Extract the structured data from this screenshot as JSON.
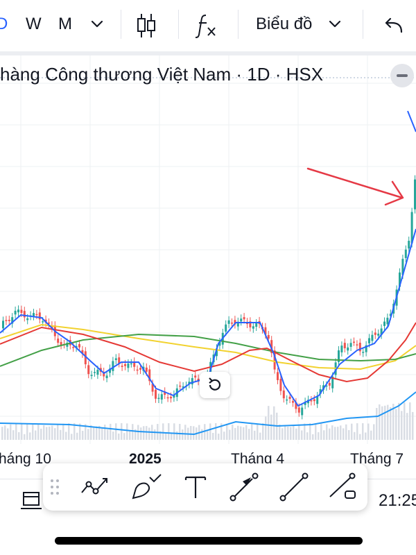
{
  "toolbar": {
    "intervals": [
      "D",
      "W",
      "M"
    ],
    "active_interval": "D",
    "interval_menu_icon": "chevron-down-icon",
    "chart_type_icon": "candlestick-icon",
    "indicators_icon": "fx-icon",
    "chart_menu_label": "Biểu đồ",
    "undo_icon": "undo-icon"
  },
  "symbol_title": "hàng Công thương Việt Nam · 1D · HSX",
  "bottom": {
    "time_label": "21:25"
  },
  "chart_data": {
    "type": "candlestick",
    "x_tick_labels": [
      "háng 10",
      "2025",
      "Tháng 4",
      "Tháng 7"
    ],
    "grid": true,
    "series": [
      {
        "name": "price",
        "style": "candles",
        "colors": {
          "up": "#26a69a",
          "down": "#ef5350"
        }
      },
      {
        "name": "",
        "style": "line",
        "color": "#2962ff",
        "note": "short moving average"
      },
      {
        "name": "",
        "style": "line",
        "color": "#e53935"
      },
      {
        "name": "",
        "style": "line",
        "color": "#f2d22f"
      },
      {
        "name": "",
        "style": "line",
        "color": "#43a047"
      },
      {
        "name": "",
        "style": "line",
        "color": "#2196f3",
        "note": "volume moving average"
      }
    ],
    "annotation": {
      "type": "arrow",
      "color": "#e53945",
      "direction": "pointing to the recent breakout candles"
    }
  },
  "drawing_toolbar": {
    "tools": [
      "trend-line-icon",
      "brush-icon",
      "text-icon",
      "arrow-icon",
      "ray-icon",
      "extended-line-icon"
    ]
  }
}
